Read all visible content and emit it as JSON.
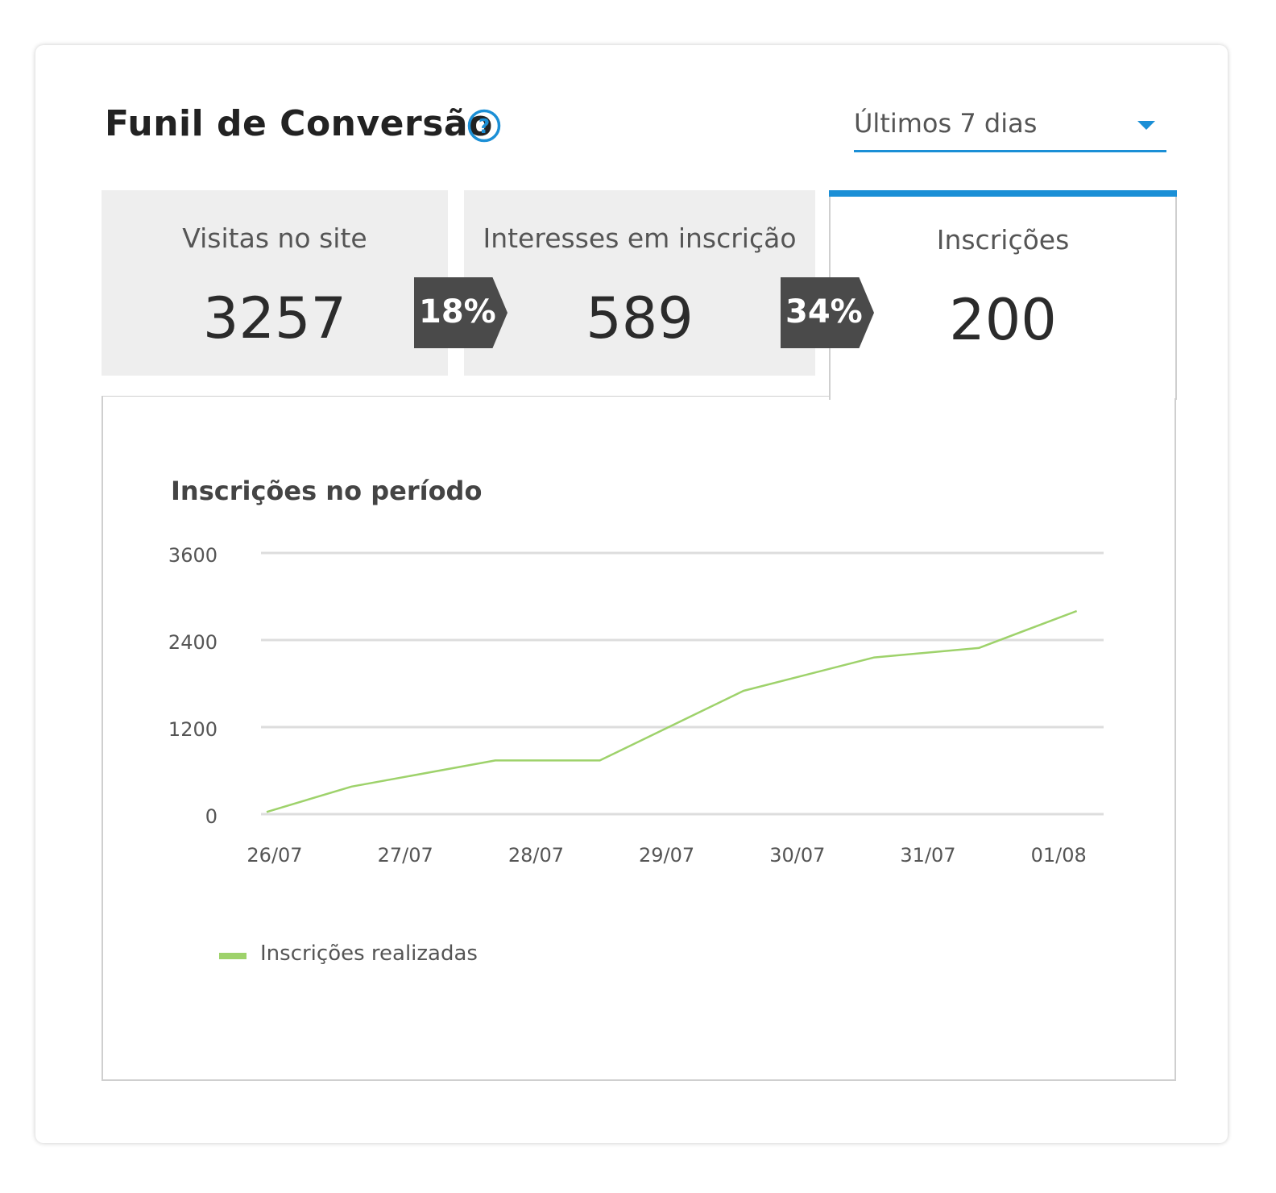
{
  "header": {
    "title": "Funil de Conversão",
    "help_icon": "question-circle-icon"
  },
  "period": {
    "selected": "Últimos 7 dias",
    "caret_icon": "caret-down-icon"
  },
  "funnel": {
    "stages": [
      {
        "label": "Visitas no site",
        "value": "3257"
      },
      {
        "label": "Interesses em inscrição",
        "value": "589"
      },
      {
        "label": "Inscrições",
        "value": "200"
      }
    ],
    "rates": [
      "18%",
      "34%"
    ],
    "active_stage": 2
  },
  "colors": {
    "accent": "#1b8fd6",
    "badge": "#4a4a4a",
    "series": "#9ed26b",
    "grid": "#dddddd"
  },
  "chart_data": {
    "type": "line",
    "title": "Inscrições no período",
    "x": [
      "26/07",
      "27/07",
      "28/07",
      "29/07",
      "30/07",
      "31/07",
      "01/08"
    ],
    "y_ticks": [
      0,
      1200,
      2400,
      3600
    ],
    "ylim": [
      0,
      3600
    ],
    "grid": true,
    "legend_position": "bottom-left",
    "series": [
      {
        "name": "Inscrições realizadas",
        "points": [
          {
            "x": 0.0,
            "y": 30
          },
          {
            "x": 0.65,
            "y": 380
          },
          {
            "x": 1.75,
            "y": 740
          },
          {
            "x": 2.55,
            "y": 740
          },
          {
            "x": 3.65,
            "y": 1700
          },
          {
            "x": 4.65,
            "y": 2160
          },
          {
            "x": 5.45,
            "y": 2290
          },
          {
            "x": 6.2,
            "y": 2800
          }
        ]
      }
    ]
  }
}
